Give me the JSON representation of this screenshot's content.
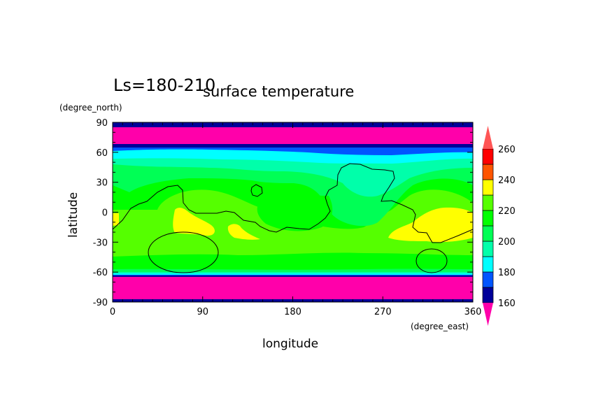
{
  "chart_data": {
    "type": "heatmap",
    "title": "surface temperature",
    "subtitle": "Ls=180-210",
    "xlabel": "longitude",
    "xunits": "(degree_east)",
    "ylabel": "latitude",
    "yunits": "(degree_north)",
    "xlim": [
      0,
      360
    ],
    "ylim": [
      -90,
      90
    ],
    "xticks": [
      "0",
      "90",
      "180",
      "270",
      "360"
    ],
    "yticks": [
      "90",
      "60",
      "30",
      "0",
      "-30",
      "-60",
      "-90"
    ],
    "colorbar": {
      "levels": [
        160,
        170,
        180,
        190,
        200,
        210,
        220,
        230,
        240,
        250,
        260
      ],
      "labels": [
        "260",
        "240",
        "220",
        "200",
        "180",
        "160"
      ],
      "colors": [
        "#000099",
        "#0055ff",
        "#00ffff",
        "#00ffaa",
        "#00ff55",
        "#00ff00",
        "#55ff00",
        "#ffff00",
        "#ff5500",
        "#ff0000"
      ],
      "under_color": "#ff00aa",
      "over_color": "#ff5555"
    },
    "field_summary": {
      "poles_below": 160,
      "tropics_range": [
        210,
        240
      ],
      "warm_regions_lon_lat": [
        [
          70,
          -15
        ],
        [
          125,
          -20
        ],
        [
          340,
          -10
        ]
      ]
    },
    "overlay": "topography contour (black line)"
  }
}
